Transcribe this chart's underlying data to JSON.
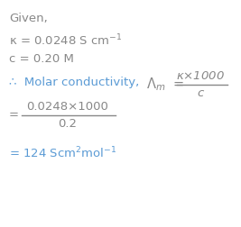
{
  "background_color": "#ffffff",
  "text_color_gray": "#888888",
  "text_color_blue": "#5b9bd5",
  "line1": "Given,",
  "line2": "κ = 0.0248 S cm$^{-1}$",
  "line3": "c = 0.20 M",
  "line4_blue": "∴  Molar conductivity,",
  "lambda_eq": "$\\Lambda_m$  =",
  "line4_num": "$\\kappa$×1000",
  "line4_den": "c",
  "line5_eq": "=",
  "line5_num": "0.0248×1000",
  "line5_den": "0.2",
  "line6": "= 124 Scm$^2$mol$^{-1}$",
  "fig_width": 2.67,
  "fig_height": 2.52,
  "dpi": 100
}
